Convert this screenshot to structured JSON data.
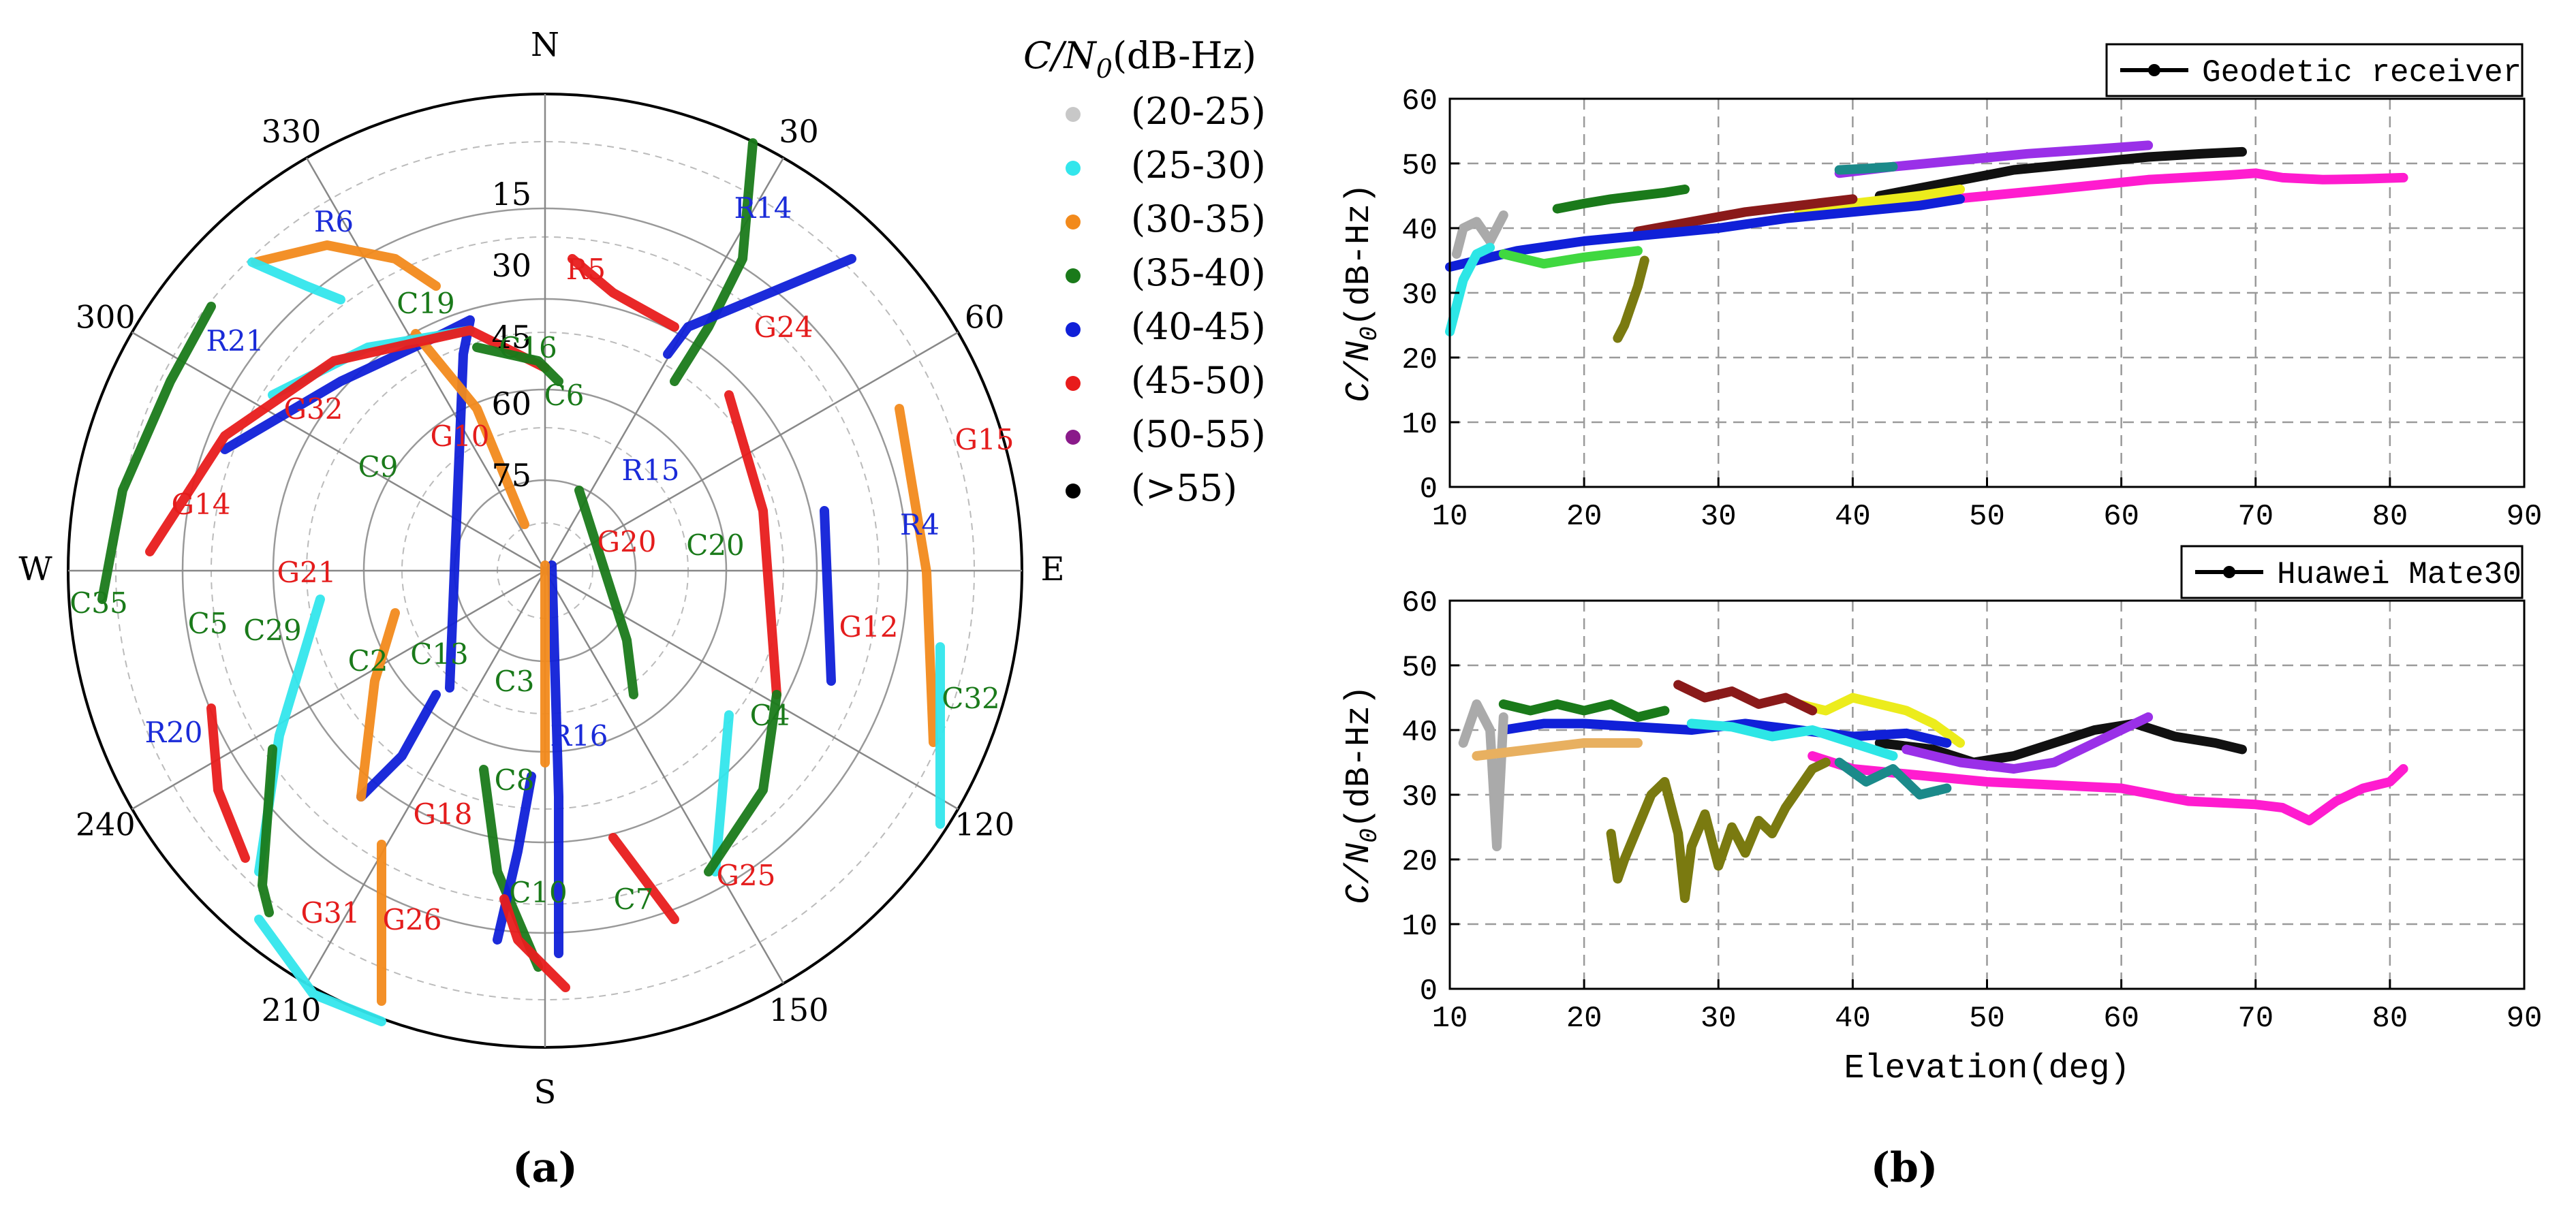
{
  "polar": {
    "panel_label": "(a)",
    "compass": {
      "N": "N",
      "S": "S",
      "E": "E",
      "W": "W"
    },
    "azimuth_labels": [
      "30",
      "60",
      "120",
      "150",
      "210",
      "240",
      "300",
      "330"
    ],
    "elevation_labels": [
      "15",
      "30",
      "45",
      "60",
      "75"
    ],
    "legend_title_var": "C/N",
    "legend_title_sub": "0",
    "legend_title_unit": "(dB-Hz)",
    "legend": [
      {
        "label": "(20-25)",
        "color": "#c8c8c8"
      },
      {
        "label": "(25-30)",
        "color": "#33e6ec"
      },
      {
        "label": "(30-35)",
        "color": "#f28a1c"
      },
      {
        "label": "(35-40)",
        "color": "#1a7a1a"
      },
      {
        "label": "(40-45)",
        "color": "#1020d8"
      },
      {
        "label": "(45-50)",
        "color": "#e81c1c"
      },
      {
        "label": "(50-55)",
        "color": "#8a1a8a"
      },
      {
        "label": "(>55)",
        "color": "#000000"
      }
    ],
    "satellites": [
      {
        "name": "R14",
        "color": "#1a2bd8"
      },
      {
        "name": "R6",
        "color": "#1a2bd8"
      },
      {
        "name": "R5",
        "color": "#e41c1c"
      },
      {
        "name": "G24",
        "color": "#e41c1c"
      },
      {
        "name": "R21",
        "color": "#1a2bd8"
      },
      {
        "name": "C19",
        "color": "#1a7a1a"
      },
      {
        "name": "C16",
        "color": "#1a7a1a"
      },
      {
        "name": "C6",
        "color": "#1a7a1a"
      },
      {
        "name": "G15",
        "color": "#e41c1c"
      },
      {
        "name": "G32",
        "color": "#e41c1c"
      },
      {
        "name": "G10",
        "color": "#e41c1c"
      },
      {
        "name": "C9",
        "color": "#1a7a1a"
      },
      {
        "name": "R15",
        "color": "#1a2bd8"
      },
      {
        "name": "G14",
        "color": "#e41c1c"
      },
      {
        "name": "R4",
        "color": "#1a2bd8"
      },
      {
        "name": "G20",
        "color": "#e41c1c"
      },
      {
        "name": "C20",
        "color": "#1a7a1a"
      },
      {
        "name": "C35",
        "color": "#1a7a1a"
      },
      {
        "name": "G21",
        "color": "#e41c1c"
      },
      {
        "name": "G12",
        "color": "#e41c1c"
      },
      {
        "name": "C5",
        "color": "#1a7a1a"
      },
      {
        "name": "C29",
        "color": "#1a7a1a"
      },
      {
        "name": "C2",
        "color": "#1a7a1a"
      },
      {
        "name": "C13",
        "color": "#1a7a1a"
      },
      {
        "name": "C3",
        "color": "#1a7a1a"
      },
      {
        "name": "C32",
        "color": "#1a7a1a"
      },
      {
        "name": "C4",
        "color": "#1a7a1a"
      },
      {
        "name": "R16",
        "color": "#1a2bd8"
      },
      {
        "name": "R20",
        "color": "#1a2bd8"
      },
      {
        "name": "C8",
        "color": "#1a7a1a"
      },
      {
        "name": "G18",
        "color": "#e41c1c"
      },
      {
        "name": "C10",
        "color": "#1a7a1a"
      },
      {
        "name": "C7",
        "color": "#1a7a1a"
      },
      {
        "name": "G25",
        "color": "#e41c1c"
      },
      {
        "name": "G31",
        "color": "#e41c1c"
      },
      {
        "name": "G26",
        "color": "#e41c1c"
      }
    ]
  },
  "chart_data": [
    {
      "type": "line",
      "title": "Geodetic receiver",
      "legend": "Geodetic receiver",
      "xlabel": "",
      "ylabel_var": "C/N",
      "ylabel_sub": "0",
      "ylabel_unit": "(dB-Hz)",
      "xlim": [
        10,
        90
      ],
      "ylim": [
        0,
        60
      ],
      "xticks": [
        10,
        20,
        30,
        40,
        50,
        60,
        70,
        80,
        90
      ],
      "yticks": [
        0,
        10,
        20,
        30,
        40,
        50,
        60
      ],
      "series": [
        {
          "name": "magenta",
          "color": "#ff1ccf",
          "x": [
            38,
            45,
            55,
            62,
            68,
            70,
            72,
            75,
            78,
            81
          ],
          "y": [
            43,
            44,
            46,
            47.5,
            48.2,
            48.5,
            47.8,
            47.5,
            47.6,
            47.8
          ]
        },
        {
          "name": "black",
          "color": "#111111",
          "x": [
            42,
            47,
            52,
            57,
            62,
            66,
            69
          ],
          "y": [
            45,
            47,
            49,
            50,
            51,
            51.5,
            51.8
          ]
        },
        {
          "name": "purple",
          "color": "#9a30e8",
          "x": [
            39,
            43,
            48,
            53,
            58,
            62
          ],
          "y": [
            48.5,
            49.5,
            50.5,
            51.5,
            52.2,
            52.8
          ]
        },
        {
          "name": "teal",
          "color": "#1b8a8a",
          "x": [
            39,
            41,
            43
          ],
          "y": [
            49,
            49.2,
            49.5
          ]
        },
        {
          "name": "yellow",
          "color": "#ecec1c",
          "x": [
            36,
            40,
            45,
            48
          ],
          "y": [
            42.5,
            43.8,
            45,
            46
          ]
        },
        {
          "name": "darkred",
          "color": "#8a1a1a",
          "x": [
            24,
            28,
            32,
            36,
            40
          ],
          "y": [
            39.5,
            41,
            42.5,
            43.5,
            44.5
          ]
        },
        {
          "name": "green",
          "color": "#1a7a1a",
          "x": [
            18,
            20,
            22,
            24,
            26,
            27.5
          ],
          "y": [
            43,
            43.8,
            44.5,
            45,
            45.5,
            46
          ]
        },
        {
          "name": "blue",
          "color": "#1020d8",
          "x": [
            10,
            15,
            20,
            25,
            30,
            35,
            40,
            45,
            48
          ],
          "y": [
            34,
            36.5,
            38,
            39,
            40,
            41.5,
            42.5,
            43.5,
            44.5
          ]
        },
        {
          "name": "olive",
          "color": "#7a7a10",
          "x": [
            22.5,
            23,
            23.5,
            24,
            24.5
          ],
          "y": [
            23,
            25,
            28,
            31,
            35
          ]
        },
        {
          "name": "gray",
          "color": "#aaaaaa",
          "x": [
            10.5,
            11,
            12,
            13,
            14
          ],
          "y": [
            36,
            40,
            41,
            38,
            42
          ]
        },
        {
          "name": "cyan",
          "color": "#2de6e6",
          "x": [
            10,
            11,
            12,
            13
          ],
          "y": [
            24,
            32,
            36,
            37
          ]
        },
        {
          "name": "lime",
          "color": "#40d840",
          "x": [
            14,
            17,
            20,
            24
          ],
          "y": [
            36,
            34.5,
            35.5,
            36.5
          ]
        }
      ]
    },
    {
      "type": "line",
      "title": "Huawei Mate30",
      "legend": "Huawei Mate30",
      "xlabel": "Elevation(deg)",
      "ylabel_var": "C/N",
      "ylabel_sub": "0",
      "ylabel_unit": "(dB-Hz)",
      "xlim": [
        10,
        90
      ],
      "ylim": [
        0,
        60
      ],
      "xticks": [
        10,
        20,
        30,
        40,
        50,
        60,
        70,
        80,
        90
      ],
      "yticks": [
        0,
        10,
        20,
        30,
        40,
        50,
        60
      ],
      "series": [
        {
          "name": "magenta",
          "color": "#ff1ccf",
          "x": [
            37,
            40,
            45,
            50,
            55,
            60,
            65,
            70,
            72,
            74,
            76,
            78,
            80,
            81
          ],
          "y": [
            36,
            34,
            33,
            32,
            31.5,
            31,
            29,
            28.5,
            28,
            26,
            29,
            31,
            32,
            34
          ]
        },
        {
          "name": "black",
          "color": "#111111",
          "x": [
            42,
            46,
            49,
            52,
            55,
            58,
            61,
            64,
            67,
            69
          ],
          "y": [
            38,
            37,
            35,
            36,
            38,
            40,
            41,
            39,
            38,
            37
          ]
        },
        {
          "name": "purple",
          "color": "#9a30e8",
          "x": [
            44,
            48,
            52,
            55,
            58,
            60,
            62
          ],
          "y": [
            37,
            35,
            34,
            35,
            38,
            40,
            42
          ]
        },
        {
          "name": "teal",
          "color": "#1b8a8a",
          "x": [
            39,
            41,
            43,
            45,
            47
          ],
          "y": [
            35,
            32,
            34,
            30,
            31
          ]
        },
        {
          "name": "yellow",
          "color": "#ecec1c",
          "x": [
            36,
            38,
            40,
            42,
            44,
            46,
            48
          ],
          "y": [
            44,
            43,
            45,
            44,
            43,
            41,
            38
          ]
        },
        {
          "name": "darkred",
          "color": "#8a1a1a",
          "x": [
            27,
            29,
            31,
            33,
            35,
            37
          ],
          "y": [
            47,
            45,
            46,
            44,
            45,
            43
          ]
        },
        {
          "name": "green",
          "color": "#1a7a1a",
          "x": [
            14,
            16,
            18,
            20,
            22,
            24,
            26
          ],
          "y": [
            44,
            43,
            44,
            43,
            44,
            42,
            43
          ]
        },
        {
          "name": "blue",
          "color": "#1020d8",
          "x": [
            14,
            17,
            20,
            24,
            28,
            32,
            36,
            40,
            44,
            47
          ],
          "y": [
            40,
            41,
            41,
            40.5,
            40,
            41,
            40,
            39,
            39.5,
            38
          ]
        },
        {
          "name": "cyan",
          "color": "#2de6e6",
          "x": [
            28,
            31,
            34,
            37,
            40,
            43
          ],
          "y": [
            41,
            40.5,
            39,
            40,
            38,
            36
          ]
        },
        {
          "name": "olive",
          "color": "#7a7a10",
          "x": [
            22,
            22.5,
            23,
            24,
            25,
            26,
            27,
            27.5,
            28,
            29,
            30,
            31,
            32,
            33,
            34,
            35,
            36,
            37,
            38
          ],
          "y": [
            24,
            17,
            20,
            25,
            30,
            32,
            24,
            14,
            22,
            27,
            19,
            25,
            21,
            26,
            24,
            28,
            31,
            34,
            35
          ]
        },
        {
          "name": "gray",
          "color": "#aaaaaa",
          "x": [
            11,
            12,
            13,
            13.5,
            14
          ],
          "y": [
            38,
            44,
            40,
            22,
            42
          ]
        },
        {
          "name": "lightorange",
          "color": "#e8b060",
          "x": [
            12,
            16,
            20,
            24
          ],
          "y": [
            36,
            37,
            38,
            38
          ]
        }
      ]
    }
  ],
  "panel_b_label": "(b)"
}
